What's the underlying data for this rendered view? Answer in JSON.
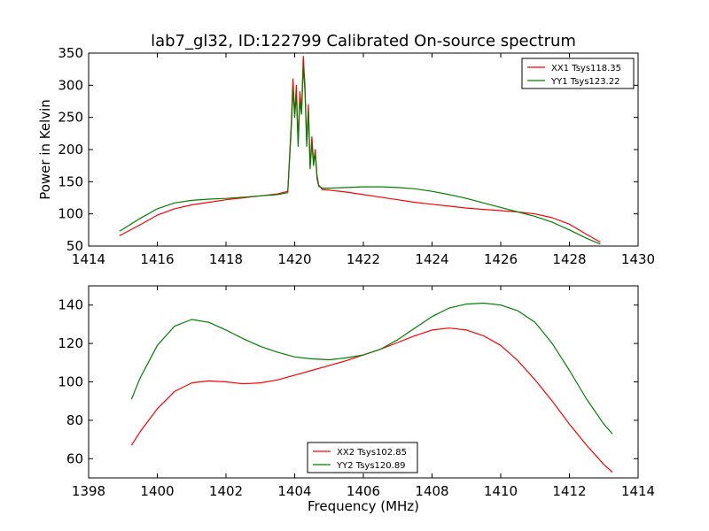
{
  "title": "lab7_gl32, ID:122799 Calibrated On-source spectrum",
  "chart_data": [
    {
      "type": "line",
      "xlim": [
        1414,
        1430
      ],
      "ylim": [
        50,
        350
      ],
      "xticks": [
        "1414",
        "1416",
        "1418",
        "1420",
        "1422",
        "1424",
        "1426",
        "1428",
        "1430"
      ],
      "yticks": [
        "50",
        "100",
        "150",
        "200",
        "250",
        "300",
        "350"
      ],
      "xlabel": "",
      "ylabel": "Power in Kelvin",
      "legend_position": "top-right",
      "grid": false,
      "series": [
        {
          "name": "XX1 Tsys118.35",
          "color": "#ff0000",
          "x": [
            1414.9,
            1415.5,
            1416.0,
            1416.5,
            1417.0,
            1417.5,
            1418.0,
            1418.5,
            1419.0,
            1419.5,
            1419.8,
            1419.9,
            1419.95,
            1420.0,
            1420.05,
            1420.1,
            1420.15,
            1420.2,
            1420.25,
            1420.3,
            1420.35,
            1420.4,
            1420.45,
            1420.5,
            1420.55,
            1420.6,
            1420.65,
            1420.7,
            1420.8,
            1421.0,
            1421.5,
            1422.0,
            1422.5,
            1423.0,
            1423.5,
            1424.0,
            1424.5,
            1425.0,
            1425.5,
            1426.0,
            1426.5,
            1427.0,
            1427.5,
            1428.0,
            1428.5,
            1428.9
          ],
          "y": [
            66,
            83,
            98,
            108,
            114,
            118,
            122,
            125,
            128,
            131,
            135,
            240,
            310,
            255,
            300,
            210,
            290,
            260,
            345,
            300,
            210,
            270,
            175,
            220,
            180,
            200,
            160,
            145,
            138,
            137,
            134,
            130,
            126,
            122,
            118,
            115,
            112,
            109,
            107,
            105,
            103,
            100,
            94,
            84,
            68,
            56
          ]
        },
        {
          "name": "YY1 Tsys123.22",
          "color": "#008000",
          "x": [
            1414.9,
            1415.5,
            1416.0,
            1416.5,
            1417.0,
            1417.5,
            1418.0,
            1418.5,
            1419.0,
            1419.5,
            1419.8,
            1419.9,
            1419.95,
            1420.0,
            1420.05,
            1420.1,
            1420.15,
            1420.2,
            1420.25,
            1420.3,
            1420.35,
            1420.4,
            1420.45,
            1420.5,
            1420.55,
            1420.6,
            1420.65,
            1420.7,
            1420.8,
            1421.0,
            1421.5,
            1422.0,
            1422.5,
            1423.0,
            1423.5,
            1424.0,
            1424.5,
            1425.0,
            1425.5,
            1426.0,
            1426.5,
            1427.0,
            1427.5,
            1428.0,
            1428.5,
            1428.9
          ],
          "y": [
            73,
            93,
            108,
            117,
            121,
            123,
            124,
            126,
            128,
            130,
            133,
            230,
            295,
            250,
            285,
            205,
            275,
            255,
            330,
            290,
            205,
            260,
            170,
            210,
            175,
            195,
            155,
            143,
            140,
            140,
            141,
            142,
            142,
            141,
            139,
            135,
            130,
            124,
            117,
            110,
            103,
            96,
            87,
            75,
            62,
            53
          ]
        }
      ]
    },
    {
      "type": "line",
      "xlim": [
        1398,
        1414
      ],
      "ylim": [
        50,
        150
      ],
      "xticks": [
        "1398",
        "1400",
        "1402",
        "1404",
        "1406",
        "1408",
        "1410",
        "1412",
        "1414"
      ],
      "yticks": [
        "60",
        "80",
        "100",
        "120",
        "140"
      ],
      "xlabel": "Frequency (MHz)",
      "ylabel": "",
      "legend_position": "bottom-center",
      "grid": false,
      "series": [
        {
          "name": "XX2 Tsys102.85",
          "color": "#ff0000",
          "x": [
            1399.25,
            1399.5,
            1400.0,
            1400.5,
            1401.0,
            1401.5,
            1402.0,
            1402.5,
            1403.0,
            1403.5,
            1404.0,
            1404.5,
            1405.0,
            1405.5,
            1406.0,
            1406.5,
            1407.0,
            1407.5,
            1408.0,
            1408.5,
            1409.0,
            1409.5,
            1410.0,
            1410.5,
            1411.0,
            1411.5,
            1412.0,
            1412.5,
            1413.0,
            1413.25
          ],
          "y": [
            67,
            74,
            86,
            95,
            99.5,
            100.5,
            100,
            99,
            99.5,
            101,
            103.5,
            106,
            108.5,
            111,
            114,
            117,
            120.5,
            124,
            127,
            128,
            127,
            124,
            119,
            111,
            101,
            90,
            78,
            67,
            57,
            53
          ]
        },
        {
          "name": "YY2 Tsys120.89",
          "color": "#008000",
          "x": [
            1399.25,
            1399.5,
            1400.0,
            1400.5,
            1401.0,
            1401.5,
            1402.0,
            1402.5,
            1403.0,
            1403.5,
            1404.0,
            1404.5,
            1405.0,
            1405.5,
            1406.0,
            1406.5,
            1407.0,
            1407.5,
            1408.0,
            1408.5,
            1409.0,
            1409.5,
            1410.0,
            1410.5,
            1411.0,
            1411.5,
            1412.0,
            1412.5,
            1413.0,
            1413.25
          ],
          "y": [
            91,
            102,
            119,
            129,
            132.5,
            131,
            127,
            122.5,
            118.5,
            115.5,
            113,
            112,
            111.5,
            112.5,
            114,
            117,
            122,
            128,
            134,
            138.5,
            140.5,
            141,
            140,
            137,
            131,
            120,
            106,
            91,
            78,
            73
          ]
        }
      ]
    }
  ]
}
